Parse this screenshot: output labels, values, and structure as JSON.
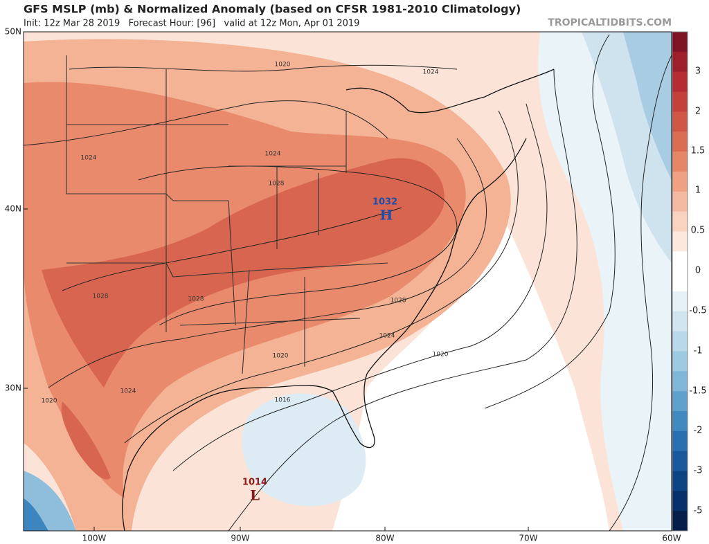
{
  "header": {
    "title": "GFS MSLP (mb) & Normalized Anomaly (based on CFSR 1981-2010 Climatology)",
    "subtitle": "Init: 12z Mar 28 2019   Forecast Hour: [96]   valid at 12z Mon, Apr 01 2019",
    "source": "TROPICALTIDBITS.COM"
  },
  "map": {
    "lat_labels": [
      "50N",
      "40N",
      "30N"
    ],
    "lon_labels": [
      "100W",
      "90W",
      "80W",
      "70W",
      "60W"
    ],
    "isobar_labels": [
      "1020",
      "1024",
      "1024",
      "1024",
      "1028",
      "1028",
      "1028",
      "1028",
      "1024",
      "1020",
      "1020",
      "1024",
      "1020",
      "1016"
    ],
    "high": {
      "value": "1032",
      "letter": "H"
    },
    "low": {
      "value": "1014",
      "letter": "L"
    }
  },
  "colorbar": {
    "ticks": [
      3,
      2,
      1.5,
      1,
      0.5,
      0,
      -0.5,
      -1,
      -1.5,
      -2,
      -3,
      -5
    ],
    "colors": [
      "#7f1424",
      "#9e1f2c",
      "#b52c32",
      "#c4403b",
      "#d05646",
      "#dc6d55",
      "#e68669",
      "#f0a083",
      "#f5b99f",
      "#f9d3c0",
      "#fce8dd",
      "#ffffff",
      "#ffffff",
      "#e5f0f7",
      "#d1e5f0",
      "#b9d8ea",
      "#9ecae1",
      "#80b6d8",
      "#5fa0cc",
      "#4289bf",
      "#2a70b0",
      "#1a5a9c",
      "#0d4584",
      "#08306b",
      "#061f4a"
    ]
  }
}
